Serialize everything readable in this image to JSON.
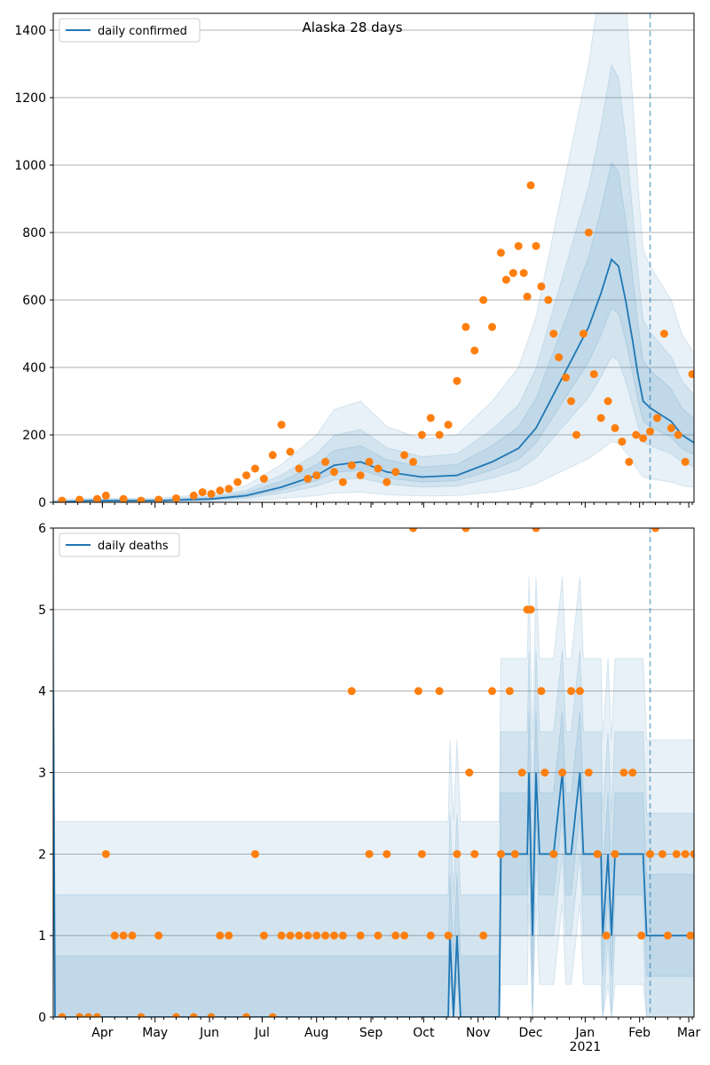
{
  "colors": {
    "line": "#1f77b4",
    "points": "#ff7f0e",
    "band": "#1f77b4",
    "grid": "#b0b0b0",
    "vline": "#1f77b4"
  },
  "chart_data": [
    {
      "type": "line",
      "title": "Alaska 28 days",
      "legend": {
        "label": "daily confirmed",
        "placement": "top-left"
      },
      "ylim": [
        0,
        1450
      ],
      "yticks": [
        0,
        200,
        400,
        600,
        800,
        1000,
        1200,
        1400
      ],
      "grid": "horizontal",
      "x_day_range": [
        0,
        365
      ],
      "vline_day": 340,
      "series": [
        {
          "name": "daily confirmed",
          "kind": "line",
          "values": [
            [
              0,
              0
            ],
            [
              20,
              5
            ],
            [
              60,
              5
            ],
            [
              90,
              10
            ],
            [
              110,
              20
            ],
            [
              130,
              45
            ],
            [
              150,
              80
            ],
            [
              160,
              110
            ],
            [
              175,
              120
            ],
            [
              190,
              90
            ],
            [
              210,
              75
            ],
            [
              230,
              80
            ],
            [
              250,
              120
            ],
            [
              265,
              160
            ],
            [
              275,
              220
            ],
            [
              285,
              320
            ],
            [
              295,
              420
            ],
            [
              305,
              520
            ],
            [
              312,
              620
            ],
            [
              318,
              720
            ],
            [
              322,
              700
            ],
            [
              326,
              600
            ],
            [
              330,
              480
            ],
            [
              333,
              380
            ],
            [
              336,
              300
            ],
            [
              340,
              280
            ],
            [
              346,
              260
            ],
            [
              352,
              240
            ],
            [
              358,
              200
            ],
            [
              364,
              180
            ],
            [
              370,
              160
            ],
            [
              376,
              150
            ],
            [
              382,
              140
            ],
            [
              388,
              120
            ],
            [
              394,
              115
            ],
            [
              398,
              110
            ],
            [
              400,
              100
            ],
            [
              405,
              100
            ]
          ]
        },
        {
          "name": "daily confirmed observed",
          "kind": "points",
          "values": [
            [
              5,
              5
            ],
            [
              15,
              8
            ],
            [
              25,
              10
            ],
            [
              30,
              20
            ],
            [
              40,
              10
            ],
            [
              50,
              5
            ],
            [
              60,
              8
            ],
            [
              70,
              12
            ],
            [
              80,
              20
            ],
            [
              85,
              30
            ],
            [
              90,
              25
            ],
            [
              95,
              35
            ],
            [
              100,
              40
            ],
            [
              105,
              60
            ],
            [
              110,
              80
            ],
            [
              115,
              100
            ],
            [
              120,
              70
            ],
            [
              125,
              140
            ],
            [
              130,
              230
            ],
            [
              135,
              150
            ],
            [
              140,
              100
            ],
            [
              145,
              70
            ],
            [
              150,
              80
            ],
            [
              155,
              120
            ],
            [
              160,
              90
            ],
            [
              165,
              60
            ],
            [
              170,
              110
            ],
            [
              175,
              80
            ],
            [
              180,
              120
            ],
            [
              185,
              100
            ],
            [
              190,
              60
            ],
            [
              195,
              90
            ],
            [
              200,
              140
            ],
            [
              205,
              120
            ],
            [
              210,
              200
            ],
            [
              215,
              250
            ],
            [
              220,
              200
            ],
            [
              225,
              230
            ],
            [
              230,
              360
            ],
            [
              235,
              520
            ],
            [
              240,
              450
            ],
            [
              245,
              600
            ],
            [
              250,
              520
            ],
            [
              255,
              740
            ],
            [
              258,
              660
            ],
            [
              262,
              680
            ],
            [
              265,
              760
            ],
            [
              268,
              680
            ],
            [
              270,
              610
            ],
            [
              272,
              940
            ],
            [
              275,
              760
            ],
            [
              278,
              640
            ],
            [
              282,
              600
            ],
            [
              285,
              500
            ],
            [
              288,
              430
            ],
            [
              292,
              370
            ],
            [
              295,
              300
            ],
            [
              298,
              200
            ],
            [
              302,
              500
            ],
            [
              305,
              800
            ],
            [
              308,
              380
            ],
            [
              312,
              250
            ],
            [
              316,
              300
            ],
            [
              320,
              220
            ],
            [
              324,
              180
            ],
            [
              328,
              120
            ],
            [
              332,
              200
            ],
            [
              336,
              190
            ],
            [
              340,
              210
            ],
            [
              344,
              250
            ],
            [
              348,
              500
            ],
            [
              352,
              220
            ],
            [
              356,
              200
            ],
            [
              360,
              120
            ],
            [
              364,
              380
            ],
            [
              368,
              150
            ],
            [
              372,
              60
            ],
            [
              376,
              0
            ],
            [
              380,
              0
            ],
            [
              385,
              0
            ]
          ]
        }
      ]
    },
    {
      "type": "line",
      "legend": {
        "label": "daily deaths",
        "placement": "top-left"
      },
      "ylim": [
        0,
        6
      ],
      "yticks": [
        0,
        1,
        2,
        3,
        4,
        5,
        6
      ],
      "grid": "horizontal",
      "x_day_range": [
        0,
        365
      ],
      "vline_day": 340,
      "xticks": [
        {
          "day": 28,
          "label": "Apr"
        },
        {
          "day": 58,
          "label": "May"
        },
        {
          "day": 89,
          "label": "Jun"
        },
        {
          "day": 119,
          "label": "Jul"
        },
        {
          "day": 150,
          "label": "Aug"
        },
        {
          "day": 181,
          "label": "Sep"
        },
        {
          "day": 211,
          "label": "Oct"
        },
        {
          "day": 242,
          "label": "Nov"
        },
        {
          "day": 272,
          "label": "Dec"
        },
        {
          "day": 303,
          "label": "Jan"
        },
        {
          "day": 334,
          "label": "Feb"
        },
        {
          "day": 362,
          "label": "Mar"
        }
      ],
      "year_label": "2021",
      "series": [
        {
          "name": "daily deaths",
          "kind": "line",
          "values": [
            [
              0,
              4
            ],
            [
              1,
              0
            ],
            [
              225,
              0
            ],
            [
              226,
              1
            ],
            [
              228,
              0
            ],
            [
              230,
              1
            ],
            [
              232,
              0
            ],
            [
              254,
              0
            ],
            [
              255,
              2
            ],
            [
              270,
              2
            ],
            [
              271,
              3
            ],
            [
              273,
              1
            ],
            [
              275,
              3
            ],
            [
              277,
              2
            ],
            [
              285,
              2
            ],
            [
              290,
              3
            ],
            [
              292,
              2
            ],
            [
              295,
              2
            ],
            [
              300,
              3
            ],
            [
              302,
              2
            ],
            [
              312,
              2
            ],
            [
              313,
              1
            ],
            [
              316,
              2
            ],
            [
              318,
              1
            ],
            [
              320,
              2
            ],
            [
              336,
              2
            ],
            [
              338,
              1
            ],
            [
              365,
              1
            ]
          ]
        },
        {
          "name": "daily deaths observed",
          "kind": "points",
          "values": [
            [
              5,
              0
            ],
            [
              15,
              0
            ],
            [
              20,
              0
            ],
            [
              25,
              0
            ],
            [
              30,
              2
            ],
            [
              35,
              1
            ],
            [
              40,
              1
            ],
            [
              45,
              1
            ],
            [
              50,
              0
            ],
            [
              60,
              1
            ],
            [
              70,
              0
            ],
            [
              80,
              0
            ],
            [
              90,
              0
            ],
            [
              95,
              1
            ],
            [
              100,
              1
            ],
            [
              110,
              0
            ],
            [
              115,
              2
            ],
            [
              120,
              1
            ],
            [
              125,
              0
            ],
            [
              130,
              1
            ],
            [
              135,
              1
            ],
            [
              140,
              1
            ],
            [
              145,
              1
            ],
            [
              150,
              1
            ],
            [
              155,
              1
            ],
            [
              160,
              1
            ],
            [
              165,
              1
            ],
            [
              170,
              4
            ],
            [
              175,
              1
            ],
            [
              180,
              2
            ],
            [
              185,
              1
            ],
            [
              190,
              2
            ],
            [
              195,
              1
            ],
            [
              200,
              1
            ],
            [
              205,
              6
            ],
            [
              208,
              4
            ],
            [
              210,
              2
            ],
            [
              215,
              1
            ],
            [
              220,
              4
            ],
            [
              225,
              1
            ],
            [
              230,
              2
            ],
            [
              235,
              6
            ],
            [
              237,
              3
            ],
            [
              240,
              2
            ],
            [
              245,
              1
            ],
            [
              250,
              4
            ],
            [
              255,
              2
            ],
            [
              260,
              4
            ],
            [
              263,
              2
            ],
            [
              267,
              3
            ],
            [
              270,
              5
            ],
            [
              272,
              5
            ],
            [
              275,
              6
            ],
            [
              278,
              4
            ],
            [
              280,
              3
            ],
            [
              285,
              2
            ],
            [
              290,
              3
            ],
            [
              295,
              4
            ],
            [
              300,
              4
            ],
            [
              305,
              3
            ],
            [
              310,
              2
            ],
            [
              315,
              1
            ],
            [
              320,
              2
            ],
            [
              325,
              3
            ],
            [
              330,
              3
            ],
            [
              335,
              1
            ],
            [
              340,
              2
            ],
            [
              343,
              6
            ],
            [
              347,
              2
            ],
            [
              350,
              1
            ],
            [
              355,
              2
            ],
            [
              360,
              2
            ],
            [
              363,
              1
            ],
            [
              365,
              2
            ]
          ]
        }
      ]
    }
  ]
}
